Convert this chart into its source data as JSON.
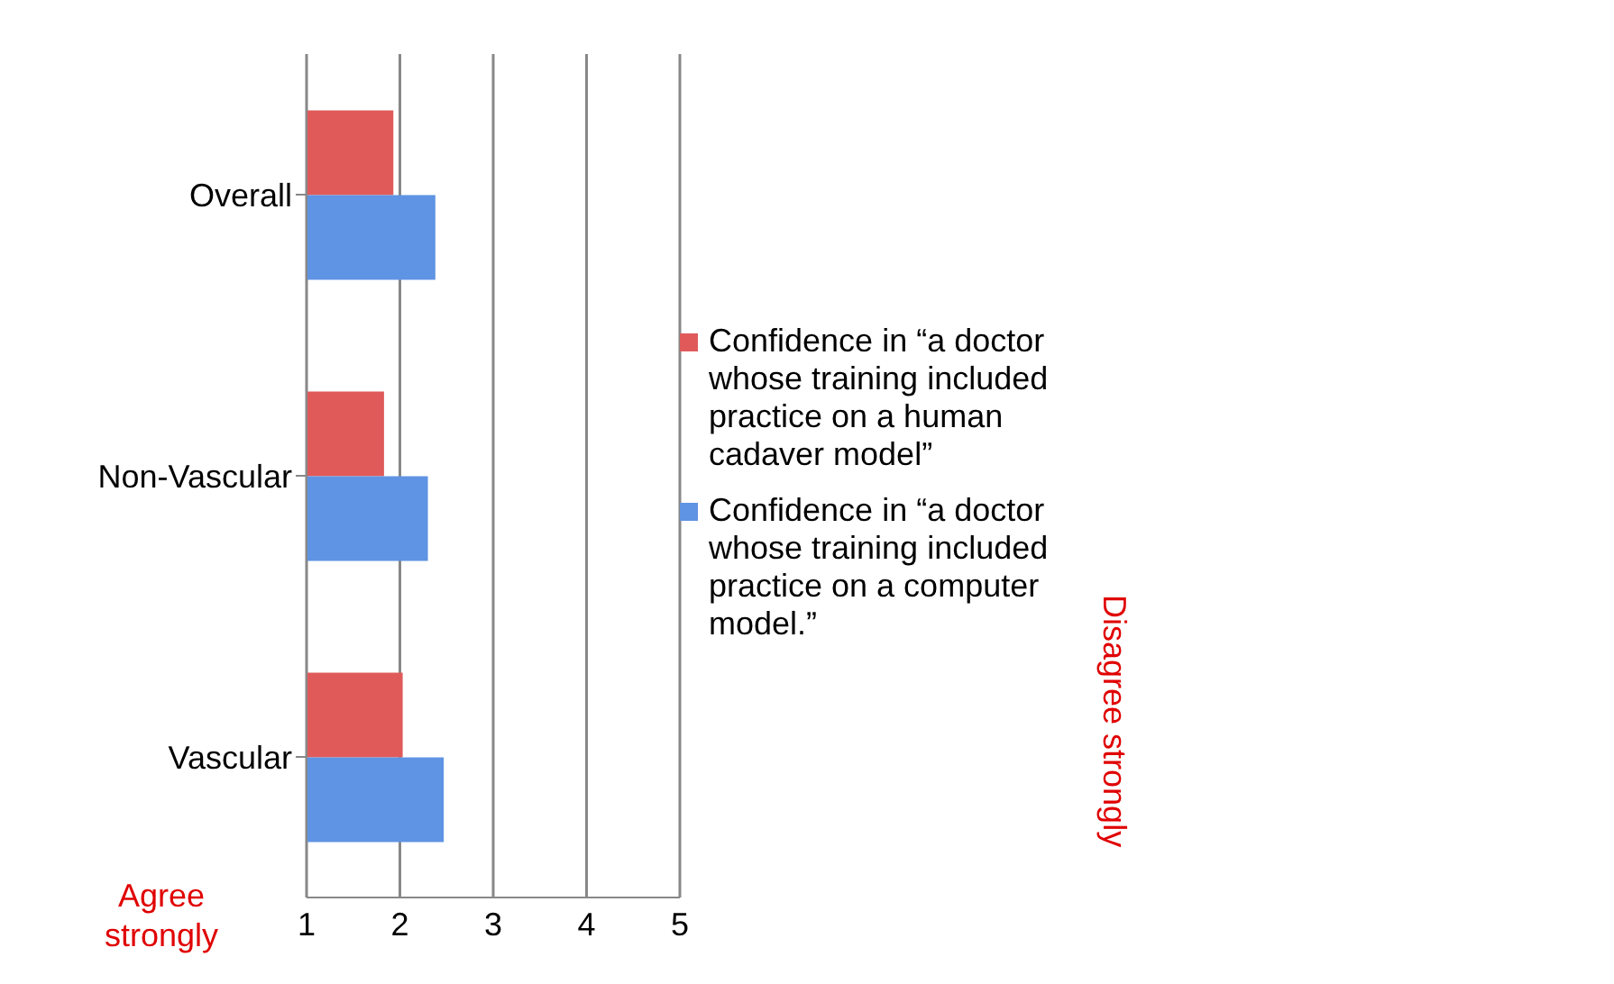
{
  "chart_data": {
    "type": "bar",
    "orientation": "horizontal",
    "categories": [
      "Overall",
      "Non-Vascular",
      "Vascular"
    ],
    "series": [
      {
        "name": "Confidence in “a doctor whose training included practice on a human cadaver model”",
        "color": "#e05a5a",
        "values": [
          1.93,
          1.83,
          2.03
        ]
      },
      {
        "name": "Confidence in “a doctor whose training included practice on a computer model.”",
        "color": "#5f93e3",
        "values": [
          2.38,
          2.3,
          2.47
        ]
      }
    ],
    "xlim": [
      1,
      5
    ],
    "xticks": [
      1,
      2,
      3,
      4,
      5
    ],
    "grid": "x",
    "legend": "right",
    "annotations": [
      "Agree strongly",
      "Disagree strongly"
    ]
  }
}
